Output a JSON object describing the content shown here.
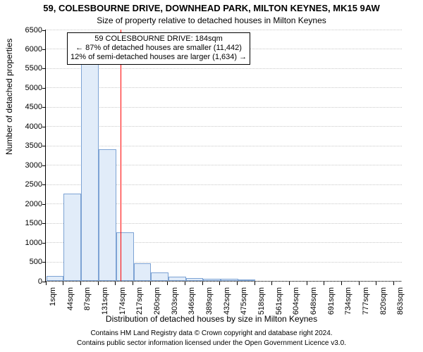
{
  "title_main": "59, COLESBOURNE DRIVE, DOWNHEAD PARK, MILTON KEYNES, MK15 9AW",
  "title_sub": "Size of property relative to detached houses in Milton Keynes",
  "ylabel": "Number of detached properties",
  "xlabel": "Distribution of detached houses by size in Milton Keynes",
  "footer1": "Contains HM Land Registry data © Crown copyright and database right 2024.",
  "footer2": "Contains public sector information licensed under the Open Government Licence v3.0.",
  "annotation": {
    "line1": "59 COLESBOURNE DRIVE: 184sqm",
    "line2": "← 87% of detached houses are smaller (11,442)",
    "line3": "12% of semi-detached houses are larger (1,634) →"
  },
  "chart": {
    "type": "histogram",
    "xlim": [
      0,
      880
    ],
    "xtick_step": 43,
    "ylim": [
      0,
      6500
    ],
    "yticks": [
      0,
      500,
      1000,
      1500,
      2000,
      2500,
      3000,
      3500,
      4000,
      4500,
      5000,
      5500,
      6000,
      6500
    ],
    "xticks_labels": [
      "1sqm",
      "44sqm",
      "87sqm",
      "131sqm",
      "174sqm",
      "217sqm",
      "260sqm",
      "303sqm",
      "346sqm",
      "389sqm",
      "432sqm",
      "475sqm",
      "518sqm",
      "561sqm",
      "604sqm",
      "648sqm",
      "691sqm",
      "734sqm",
      "777sqm",
      "820sqm",
      "863sqm"
    ],
    "bar_x": [
      1,
      44,
      87,
      131,
      174,
      217,
      260,
      303,
      346,
      389,
      432,
      475,
      518,
      561,
      604,
      648,
      691,
      734,
      777,
      820
    ],
    "bar_width_sqm": 43,
    "values": [
      120,
      2260,
      5600,
      3400,
      1250,
      460,
      220,
      110,
      70,
      60,
      60,
      40,
      0,
      0,
      0,
      0,
      0,
      0,
      0,
      0
    ],
    "reference_x": 184,
    "bar_fill": "#e1ecf9",
    "bar_stroke": "#7da3d4",
    "grid_color": "#c8c8c8",
    "axis_color": "#000000",
    "refline_color": "#ff0000",
    "background_color": "#ffffff",
    "title_fontsize": 13,
    "subtitle_fontsize": 12,
    "label_fontsize": 12,
    "tick_fontsize": 11,
    "anno_fontsize": 11,
    "footer_fontsize": 10
  }
}
